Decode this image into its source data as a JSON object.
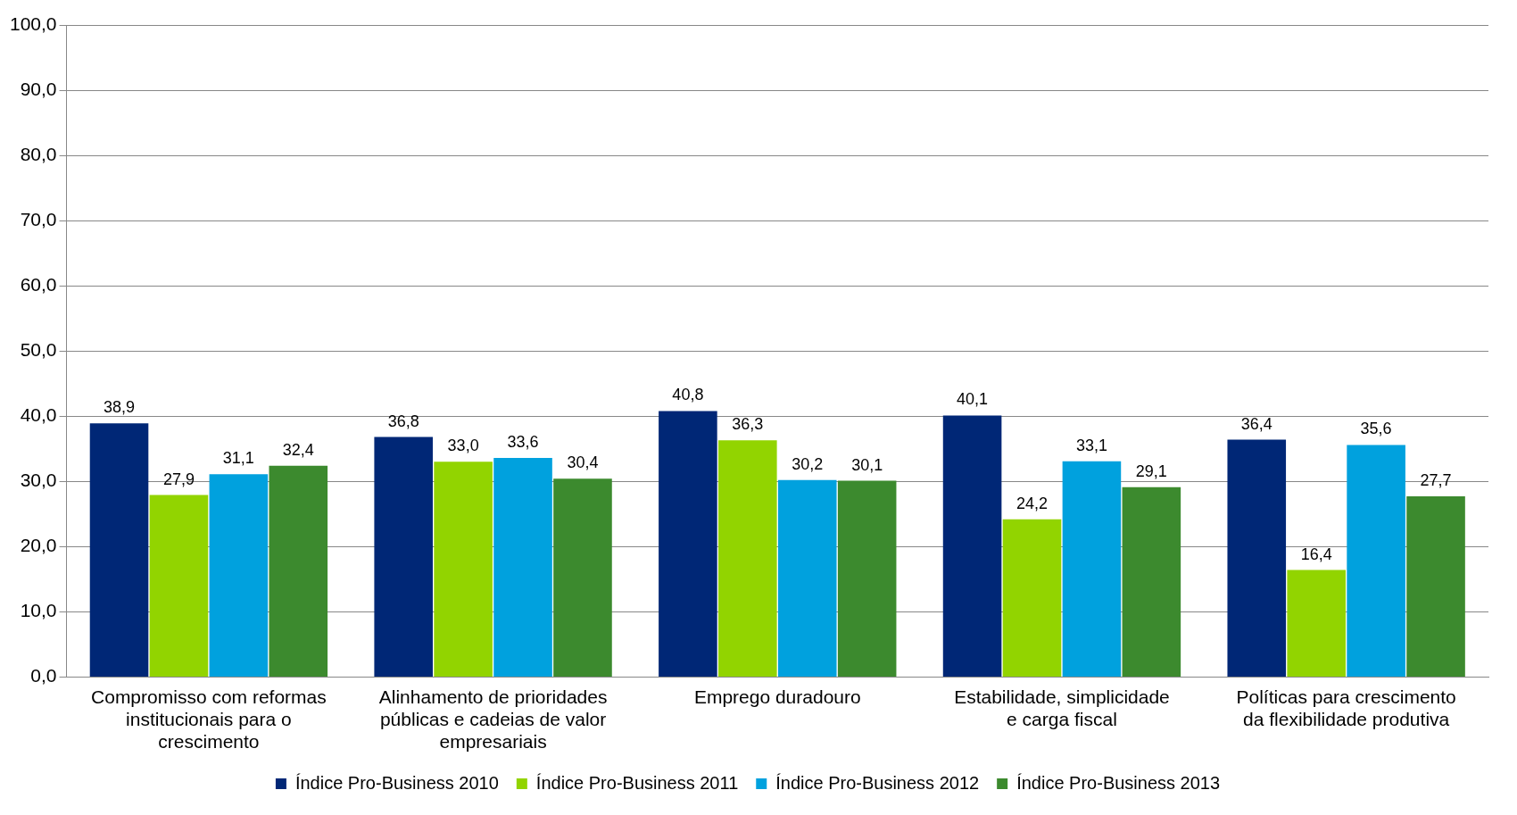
{
  "chart_data": {
    "type": "bar",
    "categories": [
      "Compromisso com reformas institucionais para o crescimento",
      "Alinhamento de prioridades públicas e cadeias de valor empresariais",
      "Emprego duradouro",
      "Estabilidade, simplicidade e carga fiscal",
      "Políticas para crescimento da flexibilidade produtiva"
    ],
    "series": [
      {
        "name": "Índice Pro-Business 2010",
        "color": "#002776",
        "values": [
          38.9,
          36.8,
          40.8,
          40.1,
          36.4
        ],
        "value_labels": [
          "38,9",
          "36,8",
          "40,8",
          "40,1",
          "36,4"
        ]
      },
      {
        "name": "Índice Pro-Business 2011",
        "color": "#92d400",
        "values": [
          27.9,
          33.0,
          36.3,
          24.2,
          16.4
        ],
        "value_labels": [
          "27,9",
          "33,0",
          "36,3",
          "24,2",
          "16,4"
        ]
      },
      {
        "name": "Índice Pro-Business 2012",
        "color": "#00a1de",
        "values": [
          31.1,
          33.6,
          30.2,
          33.1,
          35.6
        ],
        "value_labels": [
          "31,1",
          "33,6",
          "30,2",
          "33,1",
          "35,6"
        ]
      },
      {
        "name": "Índice Pro-Business 2013",
        "color": "#3c8a2e",
        "values": [
          32.4,
          30.4,
          30.1,
          29.1,
          27.7
        ],
        "value_labels": [
          "32,4",
          "30,4",
          "30,1",
          "29,1",
          "27,7"
        ]
      }
    ],
    "ylim": [
      0,
      100
    ],
    "yticks": [
      {
        "value": 0,
        "label": "0,0"
      },
      {
        "value": 10,
        "label": "10,0"
      },
      {
        "value": 20,
        "label": "20,0"
      },
      {
        "value": 30,
        "label": "30,0"
      },
      {
        "value": 40,
        "label": "40,0"
      },
      {
        "value": 50,
        "label": "50,0"
      },
      {
        "value": 60,
        "label": "60,0"
      },
      {
        "value": 70,
        "label": "70,0"
      },
      {
        "value": 80,
        "label": "80,0"
      },
      {
        "value": 90,
        "label": "90,0"
      },
      {
        "value": 100,
        "label": "100,0"
      }
    ],
    "grid": "y",
    "legend": "bottom"
  }
}
